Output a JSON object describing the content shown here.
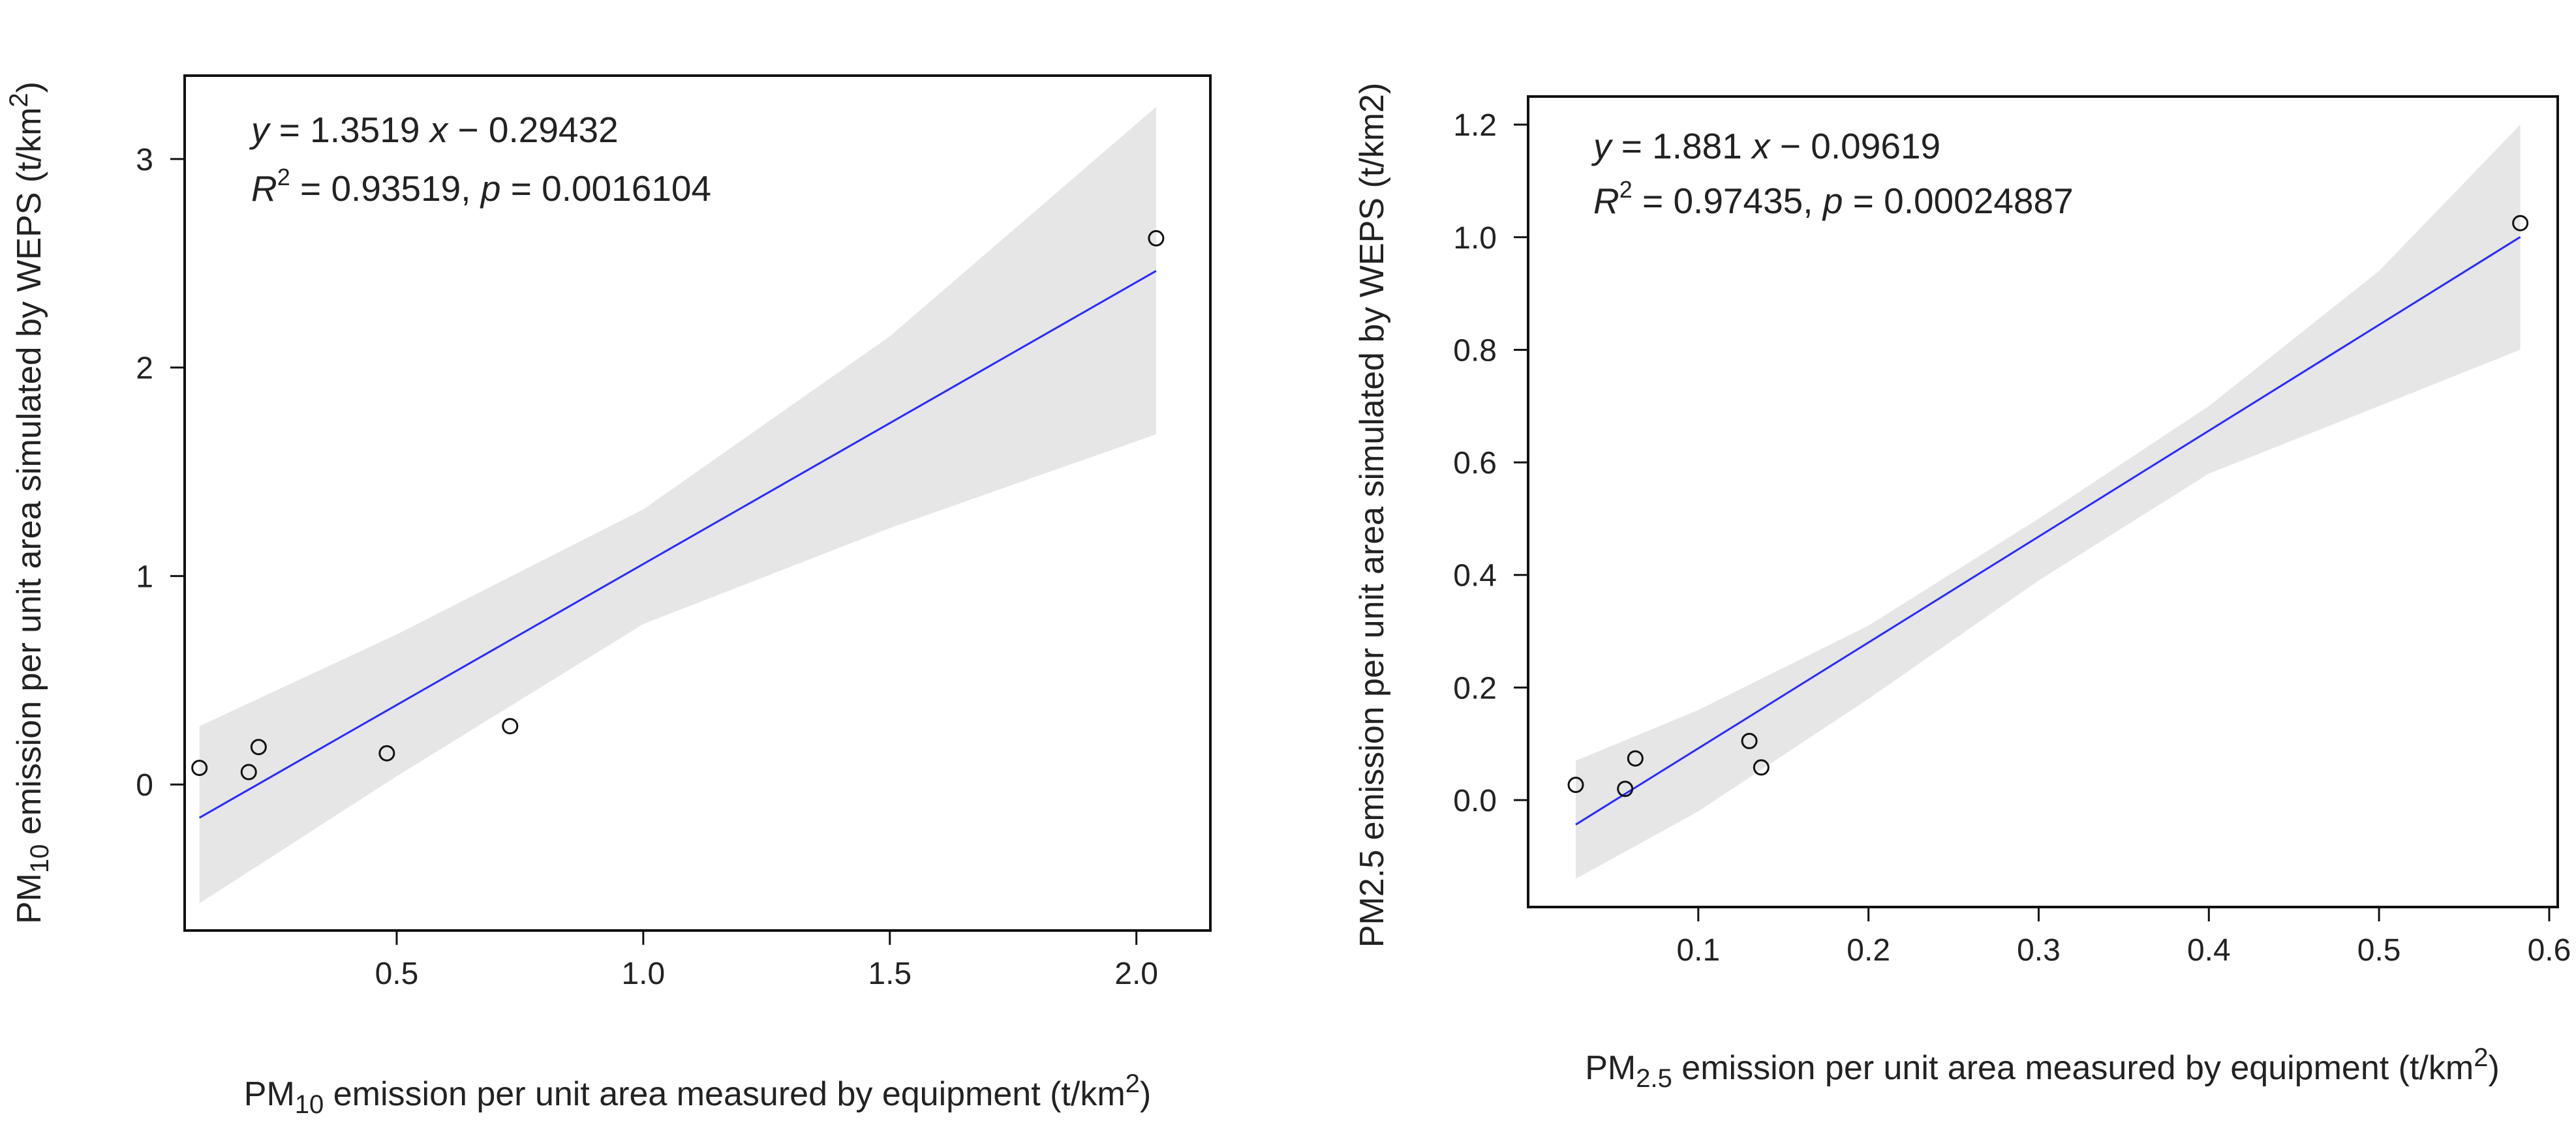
{
  "chart_data": [
    {
      "type": "scatter",
      "title": "",
      "xlabel": {
        "prefix": "PM",
        "sub": "10",
        "text": " emission per unit area measured by equipment (t/km",
        "sup": "2",
        "suffix": ")"
      },
      "ylabel": {
        "prefix": "PM",
        "sub": "10",
        "text": " emission per unit area simulated by WEPS (t/km",
        "sup": "2",
        "suffix": ")"
      },
      "xlim": [
        0.07,
        2.15
      ],
      "ylim": [
        -0.7,
        3.4
      ],
      "xticks": [
        0.5,
        1.0,
        1.5,
        2.0
      ],
      "xtick_labels": [
        "0.5",
        "1.0",
        "1.5",
        "2.0"
      ],
      "yticks": [
        0,
        1,
        2,
        3
      ],
      "ytick_labels": [
        "0",
        "1",
        "2",
        "3"
      ],
      "points": {
        "x": [
          0.1,
          0.2,
          0.22,
          0.48,
          0.73,
          2.04
        ],
        "y": [
          0.08,
          0.06,
          0.18,
          0.15,
          0.28,
          2.62
        ]
      },
      "fit": {
        "slope": 1.3519,
        "intercept": -0.29432,
        "x_range": [
          0.1,
          2.04
        ],
        "color": "#2a2aff"
      },
      "confidence_band": {
        "x": [
          0.1,
          0.5,
          1.0,
          1.5,
          2.04
        ],
        "upper": [
          0.28,
          0.72,
          1.32,
          2.15,
          3.25
        ],
        "lower": [
          -0.57,
          0.04,
          0.77,
          1.23,
          1.68
        ],
        "color": "#e6e6e6"
      },
      "annotation": {
        "eq_y": "y",
        "eq_rhs": " = 1.3519 ",
        "eq_x": "x",
        "eq_tail": " − 0.29432",
        "r_label": "R",
        "r_sup": "2",
        "r_value": " = 0.93519,  ",
        "p_label": "p",
        "p_value": "  = 0.0016104"
      }
    },
    {
      "type": "scatter",
      "title": "",
      "xlabel": {
        "prefix": "PM",
        "sub": "2.5",
        "text": " emission per unit area measured by equipment (t/km",
        "sup": "2",
        "suffix": ")"
      },
      "ylabel": {
        "prefix": "",
        "sub": "",
        "text": "PM2.5 emission per unit area simulated by WEPS (t/km2)",
        "sup": "",
        "suffix": ""
      },
      "xlim": [
        0.0,
        0.605
      ],
      "ylim": [
        -0.19,
        1.25
      ],
      "xticks": [
        0.1,
        0.2,
        0.3,
        0.4,
        0.5,
        0.6
      ],
      "xtick_labels": [
        "0.1",
        "0.2",
        "0.3",
        "0.4",
        "0.5",
        "0.6"
      ],
      "yticks": [
        0.0,
        0.2,
        0.4,
        0.6,
        0.8,
        1.0,
        1.2
      ],
      "ytick_labels": [
        "0.0",
        "0.2",
        "0.4",
        "0.6",
        "0.8",
        "1.0",
        "1.2"
      ],
      "points": {
        "x": [
          0.028,
          0.057,
          0.063,
          0.13,
          0.137,
          0.583
        ],
        "y": [
          0.027,
          0.02,
          0.074,
          0.105,
          0.058,
          1.025
        ]
      },
      "fit": {
        "slope": 1.881,
        "intercept": -0.09619,
        "x_range": [
          0.028,
          0.583
        ],
        "color": "#2a2aff"
      },
      "confidence_band": {
        "x": [
          0.028,
          0.1,
          0.2,
          0.3,
          0.4,
          0.5,
          0.583
        ],
        "upper": [
          0.07,
          0.16,
          0.31,
          0.5,
          0.7,
          0.94,
          1.2
        ],
        "lower": [
          -0.14,
          -0.02,
          0.18,
          0.39,
          0.58,
          0.7,
          0.8
        ],
        "color": "#e6e6e6"
      },
      "annotation": {
        "eq_y": "y",
        "eq_rhs": " = 1.881 ",
        "eq_x": "x",
        "eq_tail": " − 0.09619",
        "r_label": "R",
        "r_sup": "2",
        "r_value": " = 0.97435,  ",
        "p_label": "p",
        "p_value": "  = 0.00024887"
      }
    }
  ]
}
